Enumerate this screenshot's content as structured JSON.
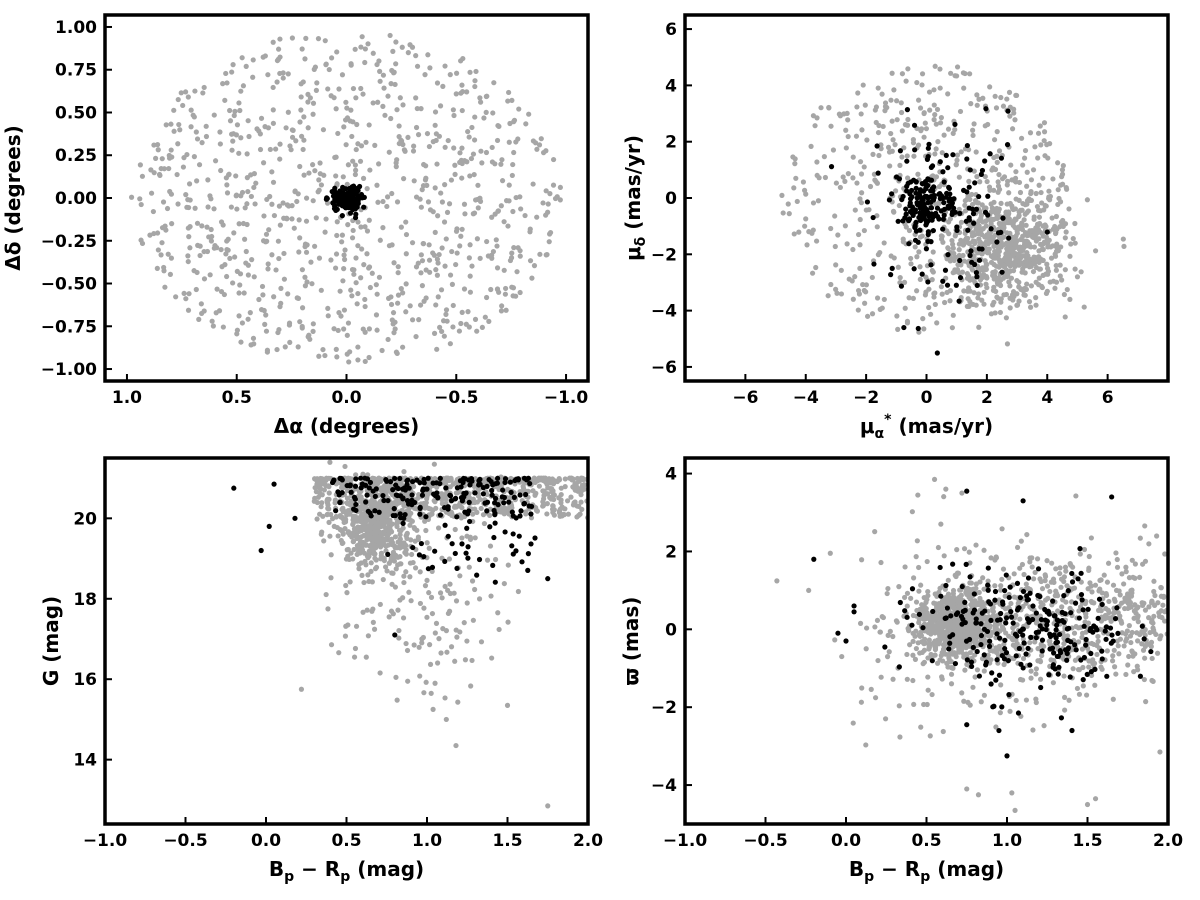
{
  "chart_data": [
    {
      "type": "scatter",
      "xlabel": "Δα (degrees)",
      "ylabel": "Δδ (degrees)",
      "xlim": [
        1.1,
        -1.1
      ],
      "ylim": [
        -1.07,
        1.07
      ],
      "xticks": [
        1.0,
        0.5,
        0.0,
        -0.5,
        -1.0
      ],
      "xtick_labels": [
        "1.0",
        "0.5",
        "0.0",
        "−0.5",
        "−1.0"
      ],
      "yticks": [
        -1.0,
        -0.75,
        -0.5,
        -0.25,
        0.0,
        0.25,
        0.5,
        0.75,
        1.0
      ],
      "ytick_labels": [
        "−1.00",
        "−0.75",
        "−0.50",
        "−0.25",
        "0.00",
        "0.25",
        "0.50",
        "0.75",
        "1.00"
      ],
      "colors": {
        "field": "#a6a6a6",
        "member": "#000000"
      },
      "series": [
        {
          "role": "field",
          "shape": "disk",
          "center": [
            0.0,
            0.0
          ],
          "radius": 0.98,
          "count": 900
        },
        {
          "role": "member",
          "shape": "cluster",
          "center": [
            0.0,
            -0.01
          ],
          "spread": [
            0.035,
            0.035
          ],
          "count": 150
        }
      ]
    },
    {
      "type": "scatter",
      "xlabel": "μα* (mas/yr)",
      "ylabel": "μδ (mas/yr)",
      "xlim": [
        -8,
        8
      ],
      "ylim": [
        -6.5,
        6.5
      ],
      "xticks": [
        -6,
        -4,
        -2,
        0,
        2,
        4,
        6
      ],
      "xtick_labels": [
        "−6",
        "−4",
        "−2",
        "0",
        "2",
        "4",
        "6"
      ],
      "yticks": [
        -6,
        -4,
        -2,
        0,
        2,
        4,
        6
      ],
      "ytick_labels": [
        "−6",
        "−4",
        "−2",
        "0",
        "2",
        "4",
        "6"
      ],
      "colors": {
        "field": "#a6a6a6",
        "member": "#000000"
      },
      "series": [
        {
          "role": "field",
          "shape": "disk",
          "center": [
            0.0,
            0.0
          ],
          "radius": 4.8,
          "count": 500
        },
        {
          "role": "field",
          "shape": "cluster",
          "center": [
            2.6,
            -1.8
          ],
          "spread": [
            1.1,
            1.0
          ],
          "count": 650
        },
        {
          "role": "member",
          "shape": "cluster",
          "center": [
            0.0,
            -0.2
          ],
          "spread": [
            0.4,
            0.5
          ],
          "count": 130
        },
        {
          "role": "member",
          "shape": "cluster",
          "center": [
            0.8,
            -0.8
          ],
          "spread": [
            1.3,
            1.6
          ],
          "count": 120
        }
      ]
    },
    {
      "type": "scatter",
      "xlabel": "Bp − Rp (mag)",
      "ylabel": "G (mag)",
      "xlim": [
        -1.0,
        2.0
      ],
      "ylim": [
        12.4,
        21.5
      ],
      "xticks": [
        -1.0,
        -0.5,
        0.0,
        0.5,
        1.0,
        1.5,
        2.0
      ],
      "xtick_labels": [
        "−1.0",
        "−0.5",
        "0.0",
        "0.5",
        "1.0",
        "1.5",
        "2.0"
      ],
      "yticks": [
        14,
        16,
        18,
        20
      ],
      "ytick_labels": [
        "14",
        "16",
        "18",
        "20"
      ],
      "colors": {
        "field": "#a6a6a6",
        "member": "#000000"
      },
      "series": [
        {
          "role": "field",
          "shape": "band",
          "x": [
            0.3,
            2.0
          ],
          "y": [
            20.0,
            21.0
          ],
          "count": 700
        },
        {
          "role": "field",
          "shape": "cluster",
          "center": [
            0.68,
            19.8
          ],
          "spread": [
            0.12,
            0.5
          ],
          "count": 500
        },
        {
          "role": "field",
          "shape": "cluster",
          "center": [
            0.95,
            18.2
          ],
          "spread": [
            0.25,
            1.3
          ],
          "count": 170
        },
        {
          "role": "member",
          "shape": "band",
          "x": [
            0.4,
            1.65
          ],
          "y": [
            20.0,
            21.0
          ],
          "count": 180
        },
        {
          "role": "member",
          "shape": "cluster",
          "center": [
            1.3,
            19.5
          ],
          "spread": [
            0.2,
            0.6
          ],
          "count": 50
        },
        {
          "role": "field",
          "shape": "points",
          "points": [
            [
              0.22,
              15.75
            ],
            [
              0.55,
              16.55
            ],
            [
              1.12,
              15.0
            ],
            [
              1.18,
              14.35
            ],
            [
              1.5,
              15.35
            ],
            [
              1.75,
              12.85
            ],
            [
              1.05,
              15.9
            ],
            [
              0.88,
              15.95
            ]
          ]
        },
        {
          "role": "member",
          "shape": "points",
          "points": [
            [
              -0.03,
              19.2
            ],
            [
              0.02,
              19.8
            ],
            [
              -0.2,
              20.75
            ],
            [
              0.05,
              20.85
            ],
            [
              0.18,
              20.0
            ],
            [
              0.8,
              17.1
            ],
            [
              1.75,
              18.5
            ]
          ]
        }
      ]
    },
    {
      "type": "scatter",
      "xlabel": "Bp − Rp (mag)",
      "ylabel": "ϖ (mas)",
      "xlim": [
        -1.0,
        2.0
      ],
      "ylim": [
        -5.0,
        4.4
      ],
      "xticks": [
        -1.0,
        -0.5,
        0.0,
        0.5,
        1.0,
        1.5,
        2.0
      ],
      "xtick_labels": [
        "−1.0",
        "−0.5",
        "0.0",
        "0.5",
        "1.0",
        "1.5",
        "2.0"
      ],
      "yticks": [
        -4,
        -2,
        0,
        2,
        4
      ],
      "ytick_labels": [
        "−4",
        "−2",
        "0",
        "2",
        "4"
      ],
      "colors": {
        "field": "#a6a6a6",
        "member": "#000000"
      },
      "series": [
        {
          "role": "field",
          "shape": "cluster",
          "center": [
            0.7,
            0.1
          ],
          "spread": [
            0.13,
            0.45
          ],
          "count": 700
        },
        {
          "role": "field",
          "shape": "cluster",
          "center": [
            1.3,
            0.2
          ],
          "spread": [
            0.35,
            0.9
          ],
          "count": 500
        },
        {
          "role": "field",
          "shape": "cluster",
          "center": [
            1.85,
            0.6
          ],
          "spread": [
            0.12,
            0.8
          ],
          "count": 90
        },
        {
          "role": "field",
          "shape": "cluster",
          "center": [
            0.6,
            0.0
          ],
          "spread": [
            0.35,
            1.4
          ],
          "count": 150
        },
        {
          "role": "member",
          "shape": "cluster",
          "center": [
            1.25,
            -0.1
          ],
          "spread": [
            0.25,
            0.8
          ],
          "count": 200
        },
        {
          "role": "member",
          "shape": "cluster",
          "center": [
            0.75,
            0.1
          ],
          "spread": [
            0.25,
            0.6
          ],
          "count": 50
        },
        {
          "role": "member",
          "shape": "points",
          "points": [
            [
              -0.2,
              1.8
            ],
            [
              0.05,
              0.6
            ],
            [
              0.05,
              0.45
            ],
            [
              -0.05,
              -0.1
            ],
            [
              0.0,
              -0.3
            ],
            [
              0.75,
              3.55
            ],
            [
              1.1,
              3.3
            ],
            [
              1.65,
              3.4
            ],
            [
              1.0,
              -3.25
            ],
            [
              0.95,
              -2.6
            ],
            [
              0.75,
              -2.45
            ]
          ]
        },
        {
          "role": "field",
          "shape": "points",
          "points": [
            [
              0.55,
              3.85
            ],
            [
              0.62,
              3.6
            ],
            [
              0.72,
              3.5
            ],
            [
              0.75,
              -4.1
            ],
            [
              1.05,
              -4.65
            ],
            [
              1.5,
              -4.5
            ],
            [
              1.55,
              -4.35
            ],
            [
              1.95,
              -3.15
            ],
            [
              1.03,
              -4.2
            ]
          ]
        }
      ]
    }
  ]
}
